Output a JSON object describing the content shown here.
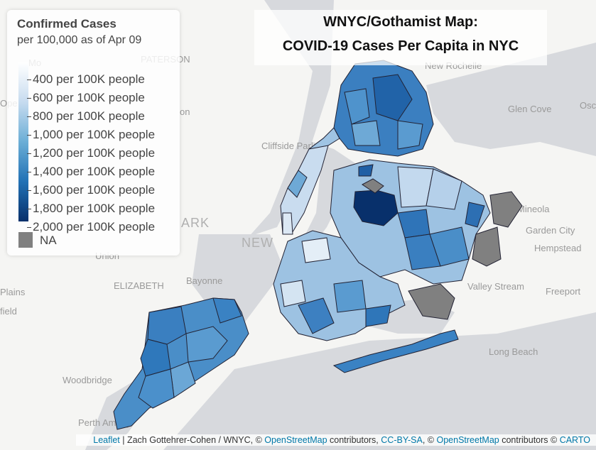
{
  "title": {
    "line1": "WNYC/Gothamist Map:",
    "line2": "COVID-19 Cases Per Capita in NYC"
  },
  "legend": {
    "title": "Confirmed Cases",
    "subtitle": "per 100,000 as of Apr 09",
    "labels": [
      "400 per 100K people",
      "600 per 100K people",
      "800 per 100K people",
      "1,000 per 100K people",
      "1,200 per 100K people",
      "1,400 per 100K people",
      "1,600 per 100K people",
      "1,800 per 100K people",
      "2,000 per 100K people"
    ],
    "na_label": "NA",
    "na_color": "#808080",
    "scale_colors": [
      "#ffffff",
      "#c6dbef",
      "#6baed6",
      "#2171b5",
      "#08306b"
    ]
  },
  "places": [
    "New Rochelle",
    "PATERSON",
    "Glen Cove",
    "Cliffside Park",
    "Mineola",
    "Garden City",
    "Hempstead",
    "NEW",
    "ARK",
    "Union",
    "ELIZABETH",
    "Bayonne",
    "Valley Stream",
    "Freeport",
    "Plains",
    "field",
    "Long Beach",
    "Woodbridge",
    "Perth Amboy",
    "on",
    "Osc",
    "Mo",
    "Ope"
  ],
  "attribution": {
    "leaflet": "Leaflet",
    "author": " | Zach Gottehrer-Cohen / WNYC, © ",
    "osm1": "OpenStreetMap",
    "contrib1": " contributors, ",
    "ccbysa": "CC-BY-SA",
    "sep": ", © ",
    "osm2": "OpenStreetMap",
    "contrib2": " contributors © ",
    "carto": "CARTO"
  }
}
